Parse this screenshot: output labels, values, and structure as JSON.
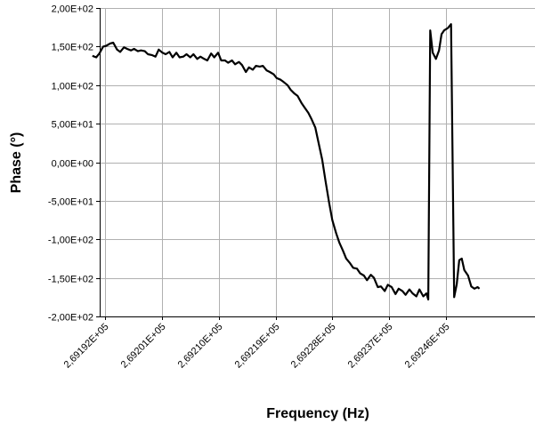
{
  "chart_data": {
    "type": "line",
    "title": "",
    "xlabel": "Frequency (Hz)",
    "ylabel": "Phase (°)",
    "xlim": [
      269190,
      269254
    ],
    "ylim": [
      -200,
      200
    ],
    "grid": true,
    "x_ticks": [
      {
        "value": 269192,
        "label": "2,69192E+05"
      },
      {
        "value": 269201,
        "label": "2,69201E+05"
      },
      {
        "value": 269210,
        "label": "2,69210E+05"
      },
      {
        "value": 269219,
        "label": "2,69219E+05"
      },
      {
        "value": 269228,
        "label": "2,69228E+05"
      },
      {
        "value": 269237,
        "label": "2,69237E+05"
      },
      {
        "value": 269246,
        "label": "2,69246E+05"
      }
    ],
    "y_ticks": [
      {
        "value": 200,
        "label": "2,00E+02"
      },
      {
        "value": 150,
        "label": "1,50E+02"
      },
      {
        "value": 100,
        "label": "1,00E+02"
      },
      {
        "value": 50,
        "label": "5,00E+01"
      },
      {
        "value": 0,
        "label": "0,00E+00"
      },
      {
        "value": -50,
        "label": "-5,00E+01"
      },
      {
        "value": -100,
        "label": "-1,00E+02"
      },
      {
        "value": -150,
        "label": "-1,50E+02"
      },
      {
        "value": -200,
        "label": "-2,00E+02"
      }
    ],
    "series": [
      {
        "name": "",
        "points": [
          [
            269190.0,
            138
          ],
          [
            269190.6,
            136
          ],
          [
            269191.1,
            141
          ],
          [
            269191.7,
            150
          ],
          [
            269192.2,
            151
          ],
          [
            269192.8,
            154
          ],
          [
            269193.3,
            155
          ],
          [
            269193.9,
            146
          ],
          [
            269194.4,
            143
          ],
          [
            269195.0,
            149
          ],
          [
            269195.5,
            147
          ],
          [
            269196.1,
            145
          ],
          [
            269196.6,
            147
          ],
          [
            269197.2,
            144
          ],
          [
            269197.7,
            145
          ],
          [
            269198.3,
            144
          ],
          [
            269198.8,
            140
          ],
          [
            269199.4,
            139
          ],
          [
            269200.0,
            137
          ],
          [
            269200.5,
            146
          ],
          [
            269201.1,
            142
          ],
          [
            269201.6,
            140
          ],
          [
            269202.2,
            143
          ],
          [
            269202.7,
            136
          ],
          [
            269203.3,
            142
          ],
          [
            269203.8,
            136
          ],
          [
            269204.4,
            137
          ],
          [
            269204.9,
            140
          ],
          [
            269205.5,
            136
          ],
          [
            269206.0,
            140
          ],
          [
            269206.6,
            134
          ],
          [
            269207.1,
            137
          ],
          [
            269207.7,
            134
          ],
          [
            269208.2,
            132
          ],
          [
            269208.8,
            141
          ],
          [
            269209.3,
            136
          ],
          [
            269209.9,
            142
          ],
          [
            269210.4,
            132
          ],
          [
            269211.0,
            132
          ],
          [
            269211.5,
            129
          ],
          [
            269212.1,
            132
          ],
          [
            269212.6,
            127
          ],
          [
            269213.2,
            130
          ],
          [
            269213.7,
            126
          ],
          [
            269214.3,
            117
          ],
          [
            269214.8,
            123
          ],
          [
            269215.4,
            120
          ],
          [
            269215.9,
            125
          ],
          [
            269216.5,
            124
          ],
          [
            269217.0,
            125
          ],
          [
            269217.6,
            119
          ],
          [
            269218.1,
            117
          ],
          [
            269218.7,
            114
          ],
          [
            269219.2,
            109
          ],
          [
            269219.8,
            107
          ],
          [
            269220.3,
            104
          ],
          [
            269220.9,
            100
          ],
          [
            269221.4,
            94
          ],
          [
            269222.0,
            89
          ],
          [
            269222.5,
            86
          ],
          [
            269223.1,
            77
          ],
          [
            269223.6,
            71
          ],
          [
            269224.2,
            64
          ],
          [
            269224.7,
            56
          ],
          [
            269225.3,
            45
          ],
          [
            269225.8,
            26
          ],
          [
            269226.4,
            3
          ],
          [
            269226.9,
            -23
          ],
          [
            269227.5,
            -53
          ],
          [
            269228.0,
            -75
          ],
          [
            269228.6,
            -92
          ],
          [
            269229.1,
            -104
          ],
          [
            269229.7,
            -115
          ],
          [
            269230.2,
            -125
          ],
          [
            269230.8,
            -131
          ],
          [
            269231.3,
            -137
          ],
          [
            269231.9,
            -138
          ],
          [
            269232.4,
            -144
          ],
          [
            269233.0,
            -147
          ],
          [
            269233.5,
            -153
          ],
          [
            269234.1,
            -146
          ],
          [
            269234.6,
            -150
          ],
          [
            269235.2,
            -162
          ],
          [
            269235.7,
            -161
          ],
          [
            269236.3,
            -167
          ],
          [
            269236.8,
            -159
          ],
          [
            269237.4,
            -162
          ],
          [
            269238.0,
            -171
          ],
          [
            269238.5,
            -164
          ],
          [
            269239.1,
            -167
          ],
          [
            269239.6,
            -172
          ],
          [
            269240.2,
            -165
          ],
          [
            269240.7,
            -170
          ],
          [
            269241.3,
            -174
          ],
          [
            269241.8,
            -165
          ],
          [
            269242.4,
            -174
          ],
          [
            269242.9,
            -170
          ],
          [
            269243.2,
            -178
          ],
          [
            269243.5,
            171
          ],
          [
            269243.9,
            142
          ],
          [
            269244.4,
            134
          ],
          [
            269244.9,
            145
          ],
          [
            269245.3,
            166
          ],
          [
            269245.7,
            171
          ],
          [
            269246.3,
            174
          ],
          [
            269246.8,
            179
          ],
          [
            269247.3,
            -175
          ],
          [
            269247.7,
            -158
          ],
          [
            269248.1,
            -127
          ],
          [
            269248.5,
            -125
          ],
          [
            269248.9,
            -140
          ],
          [
            269249.5,
            -147
          ],
          [
            269250.0,
            -161
          ],
          [
            269250.5,
            -164
          ],
          [
            269251.0,
            -162
          ],
          [
            269251.3,
            -164
          ]
        ]
      }
    ]
  }
}
